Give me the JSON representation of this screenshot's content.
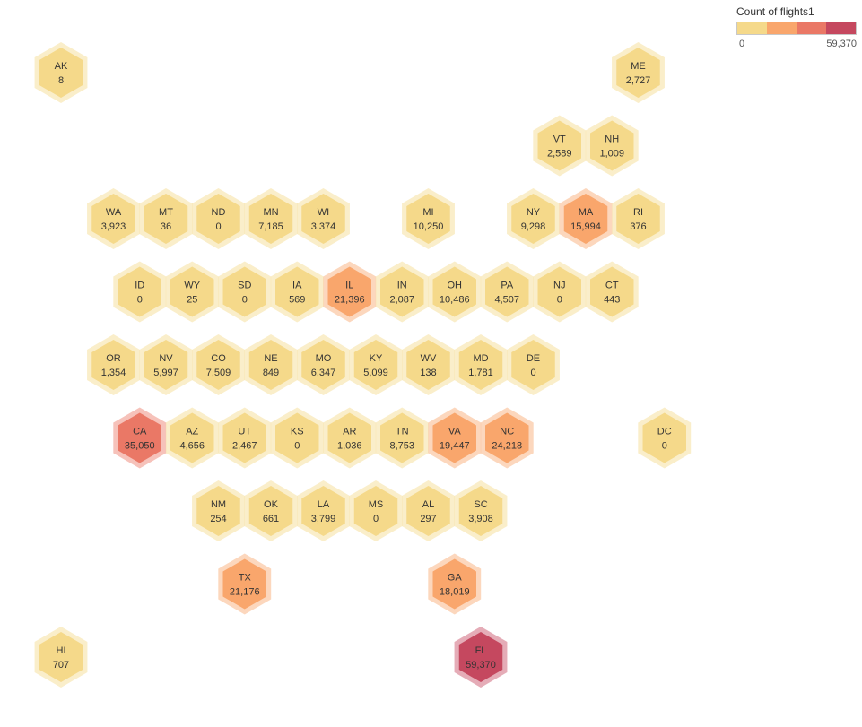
{
  "legend": {
    "title": "Count of flights1",
    "min_label": "0",
    "max_label": "59,370",
    "colors": [
      "#f5d98a",
      "#f9a66c",
      "#ea7866",
      "#c5485f"
    ]
  },
  "chart_data": {
    "type": "heatmap",
    "title": "",
    "measure": "Count of flights1",
    "range": [
      0,
      59370
    ],
    "cells": [
      {
        "state": "AK",
        "value": 8,
        "label": "8",
        "col": 0,
        "row": 0
      },
      {
        "state": "ME",
        "value": 2727,
        "label": "2,727",
        "col": 11,
        "row": 0
      },
      {
        "state": "VT",
        "value": 2589,
        "label": "2,589",
        "col": 9.5,
        "row": 1
      },
      {
        "state": "NH",
        "value": 1009,
        "label": "1,009",
        "col": 10.5,
        "row": 1
      },
      {
        "state": "WA",
        "value": 3923,
        "label": "3,923",
        "col": 1,
        "row": 2
      },
      {
        "state": "MT",
        "value": 36,
        "label": "36",
        "col": 2,
        "row": 2
      },
      {
        "state": "ND",
        "value": 0,
        "label": "0",
        "col": 3,
        "row": 2
      },
      {
        "state": "MN",
        "value": 7185,
        "label": "7,185",
        "col": 4,
        "row": 2
      },
      {
        "state": "WI",
        "value": 3374,
        "label": "3,374",
        "col": 5,
        "row": 2
      },
      {
        "state": "MI",
        "value": 10250,
        "label": "10,250",
        "col": 7,
        "row": 2
      },
      {
        "state": "NY",
        "value": 9298,
        "label": "9,298",
        "col": 9,
        "row": 2
      },
      {
        "state": "MA",
        "value": 15994,
        "label": "15,994",
        "col": 10,
        "row": 2
      },
      {
        "state": "RI",
        "value": 376,
        "label": "376",
        "col": 11,
        "row": 2
      },
      {
        "state": "ID",
        "value": 0,
        "label": "0",
        "col": 1.5,
        "row": 3
      },
      {
        "state": "WY",
        "value": 25,
        "label": "25",
        "col": 2.5,
        "row": 3
      },
      {
        "state": "SD",
        "value": 0,
        "label": "0",
        "col": 3.5,
        "row": 3
      },
      {
        "state": "IA",
        "value": 569,
        "label": "569",
        "col": 4.5,
        "row": 3
      },
      {
        "state": "IL",
        "value": 21396,
        "label": "21,396",
        "col": 5.5,
        "row": 3
      },
      {
        "state": "IN",
        "value": 2087,
        "label": "2,087",
        "col": 6.5,
        "row": 3
      },
      {
        "state": "OH",
        "value": 10486,
        "label": "10,486",
        "col": 7.5,
        "row": 3
      },
      {
        "state": "PA",
        "value": 4507,
        "label": "4,507",
        "col": 8.5,
        "row": 3
      },
      {
        "state": "NJ",
        "value": 0,
        "label": "0",
        "col": 9.5,
        "row": 3
      },
      {
        "state": "CT",
        "value": 443,
        "label": "443",
        "col": 10.5,
        "row": 3
      },
      {
        "state": "OR",
        "value": 1354,
        "label": "1,354",
        "col": 1,
        "row": 4
      },
      {
        "state": "NV",
        "value": 5997,
        "label": "5,997",
        "col": 2,
        "row": 4
      },
      {
        "state": "CO",
        "value": 7509,
        "label": "7,509",
        "col": 3,
        "row": 4
      },
      {
        "state": "NE",
        "value": 849,
        "label": "849",
        "col": 4,
        "row": 4
      },
      {
        "state": "MO",
        "value": 6347,
        "label": "6,347",
        "col": 5,
        "row": 4
      },
      {
        "state": "KY",
        "value": 5099,
        "label": "5,099",
        "col": 6,
        "row": 4
      },
      {
        "state": "WV",
        "value": 138,
        "label": "138",
        "col": 7,
        "row": 4
      },
      {
        "state": "MD",
        "value": 1781,
        "label": "1,781",
        "col": 8,
        "row": 4
      },
      {
        "state": "DE",
        "value": 0,
        "label": "0",
        "col": 9,
        "row": 4
      },
      {
        "state": "CA",
        "value": 35050,
        "label": "35,050",
        "col": 1.5,
        "row": 5
      },
      {
        "state": "AZ",
        "value": 4656,
        "label": "4,656",
        "col": 2.5,
        "row": 5
      },
      {
        "state": "UT",
        "value": 2467,
        "label": "2,467",
        "col": 3.5,
        "row": 5
      },
      {
        "state": "KS",
        "value": 0,
        "label": "0",
        "col": 4.5,
        "row": 5
      },
      {
        "state": "AR",
        "value": 1036,
        "label": "1,036",
        "col": 5.5,
        "row": 5
      },
      {
        "state": "TN",
        "value": 8753,
        "label": "8,753",
        "col": 6.5,
        "row": 5
      },
      {
        "state": "VA",
        "value": 19447,
        "label": "19,447",
        "col": 7.5,
        "row": 5
      },
      {
        "state": "NC",
        "value": 24218,
        "label": "24,218",
        "col": 8.5,
        "row": 5
      },
      {
        "state": "DC",
        "value": 0,
        "label": "0",
        "col": 11.5,
        "row": 5
      },
      {
        "state": "NM",
        "value": 254,
        "label": "254",
        "col": 3,
        "row": 6
      },
      {
        "state": "OK",
        "value": 661,
        "label": "661",
        "col": 4,
        "row": 6
      },
      {
        "state": "LA",
        "value": 3799,
        "label": "3,799",
        "col": 5,
        "row": 6
      },
      {
        "state": "MS",
        "value": 0,
        "label": "0",
        "col": 6,
        "row": 6
      },
      {
        "state": "AL",
        "value": 297,
        "label": "297",
        "col": 7,
        "row": 6
      },
      {
        "state": "SC",
        "value": 3908,
        "label": "3,908",
        "col": 8,
        "row": 6
      },
      {
        "state": "TX",
        "value": 21176,
        "label": "21,176",
        "col": 3.5,
        "row": 7
      },
      {
        "state": "GA",
        "value": 18019,
        "label": "18,019",
        "col": 7.5,
        "row": 7
      },
      {
        "state": "HI",
        "value": 707,
        "label": "707",
        "col": 0,
        "row": 8
      },
      {
        "state": "FL",
        "value": 59370,
        "label": "59,370",
        "col": 8,
        "row": 8
      }
    ]
  }
}
